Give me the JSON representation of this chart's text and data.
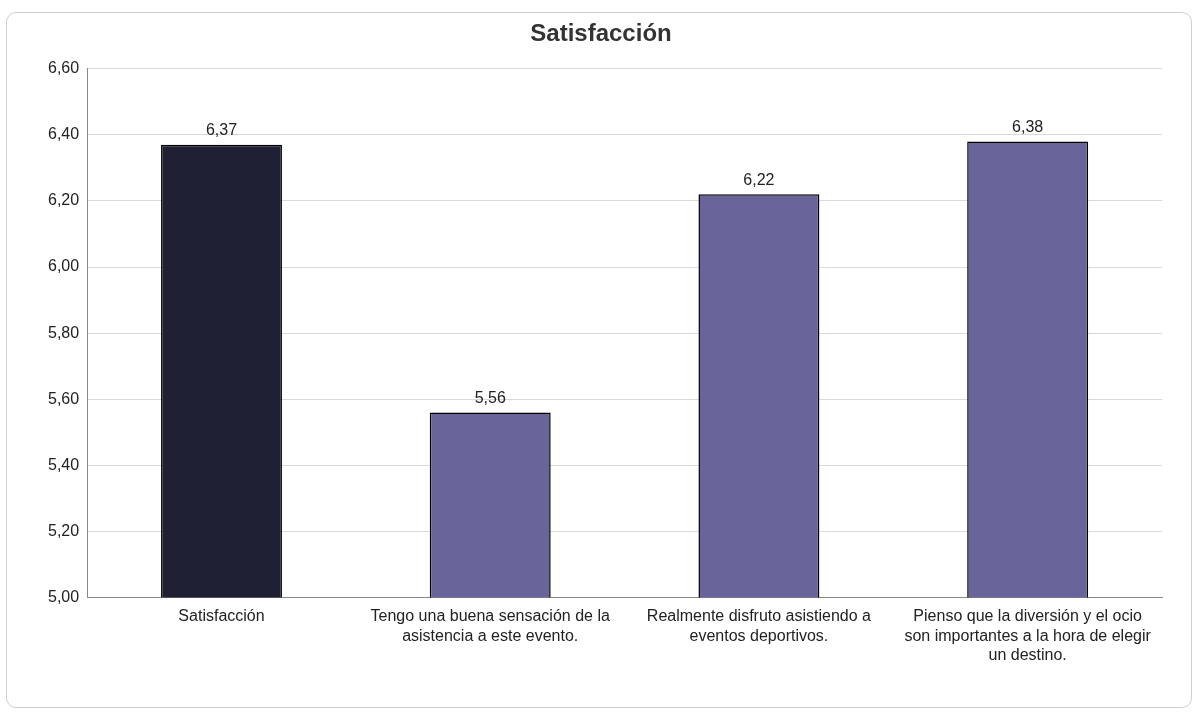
{
  "chart_data": {
    "type": "bar",
    "title": "Satisfacción",
    "categories": [
      "Satisfacción",
      "Tengo una buena sensación de la asistencia a este evento.",
      "Realmente disfruto asistiendo a eventos deportivos.",
      "Pienso que la diversión y el ocio son importantes a la hora de elegir un destino."
    ],
    "values": [
      6.37,
      5.56,
      6.22,
      6.38
    ],
    "colors": [
      "#202035",
      "#69659a",
      "#69659a",
      "#69659a"
    ],
    "value_labels": [
      "6,37",
      "5,56",
      "6,22",
      "6,38"
    ],
    "ylim": [
      5.0,
      6.6
    ],
    "yticks": [
      {
        "value": 5.0,
        "label": "5,00"
      },
      {
        "value": 5.2,
        "label": "5,20"
      },
      {
        "value": 5.4,
        "label": "5,40"
      },
      {
        "value": 5.6,
        "label": "5,60"
      },
      {
        "value": 5.8,
        "label": "5,80"
      },
      {
        "value": 6.0,
        "label": "6,00"
      },
      {
        "value": 6.2,
        "label": "6,20"
      },
      {
        "value": 6.4,
        "label": "6,40"
      },
      {
        "value": 6.6,
        "label": "6,60"
      }
    ],
    "grid": "y",
    "legend": false
  }
}
